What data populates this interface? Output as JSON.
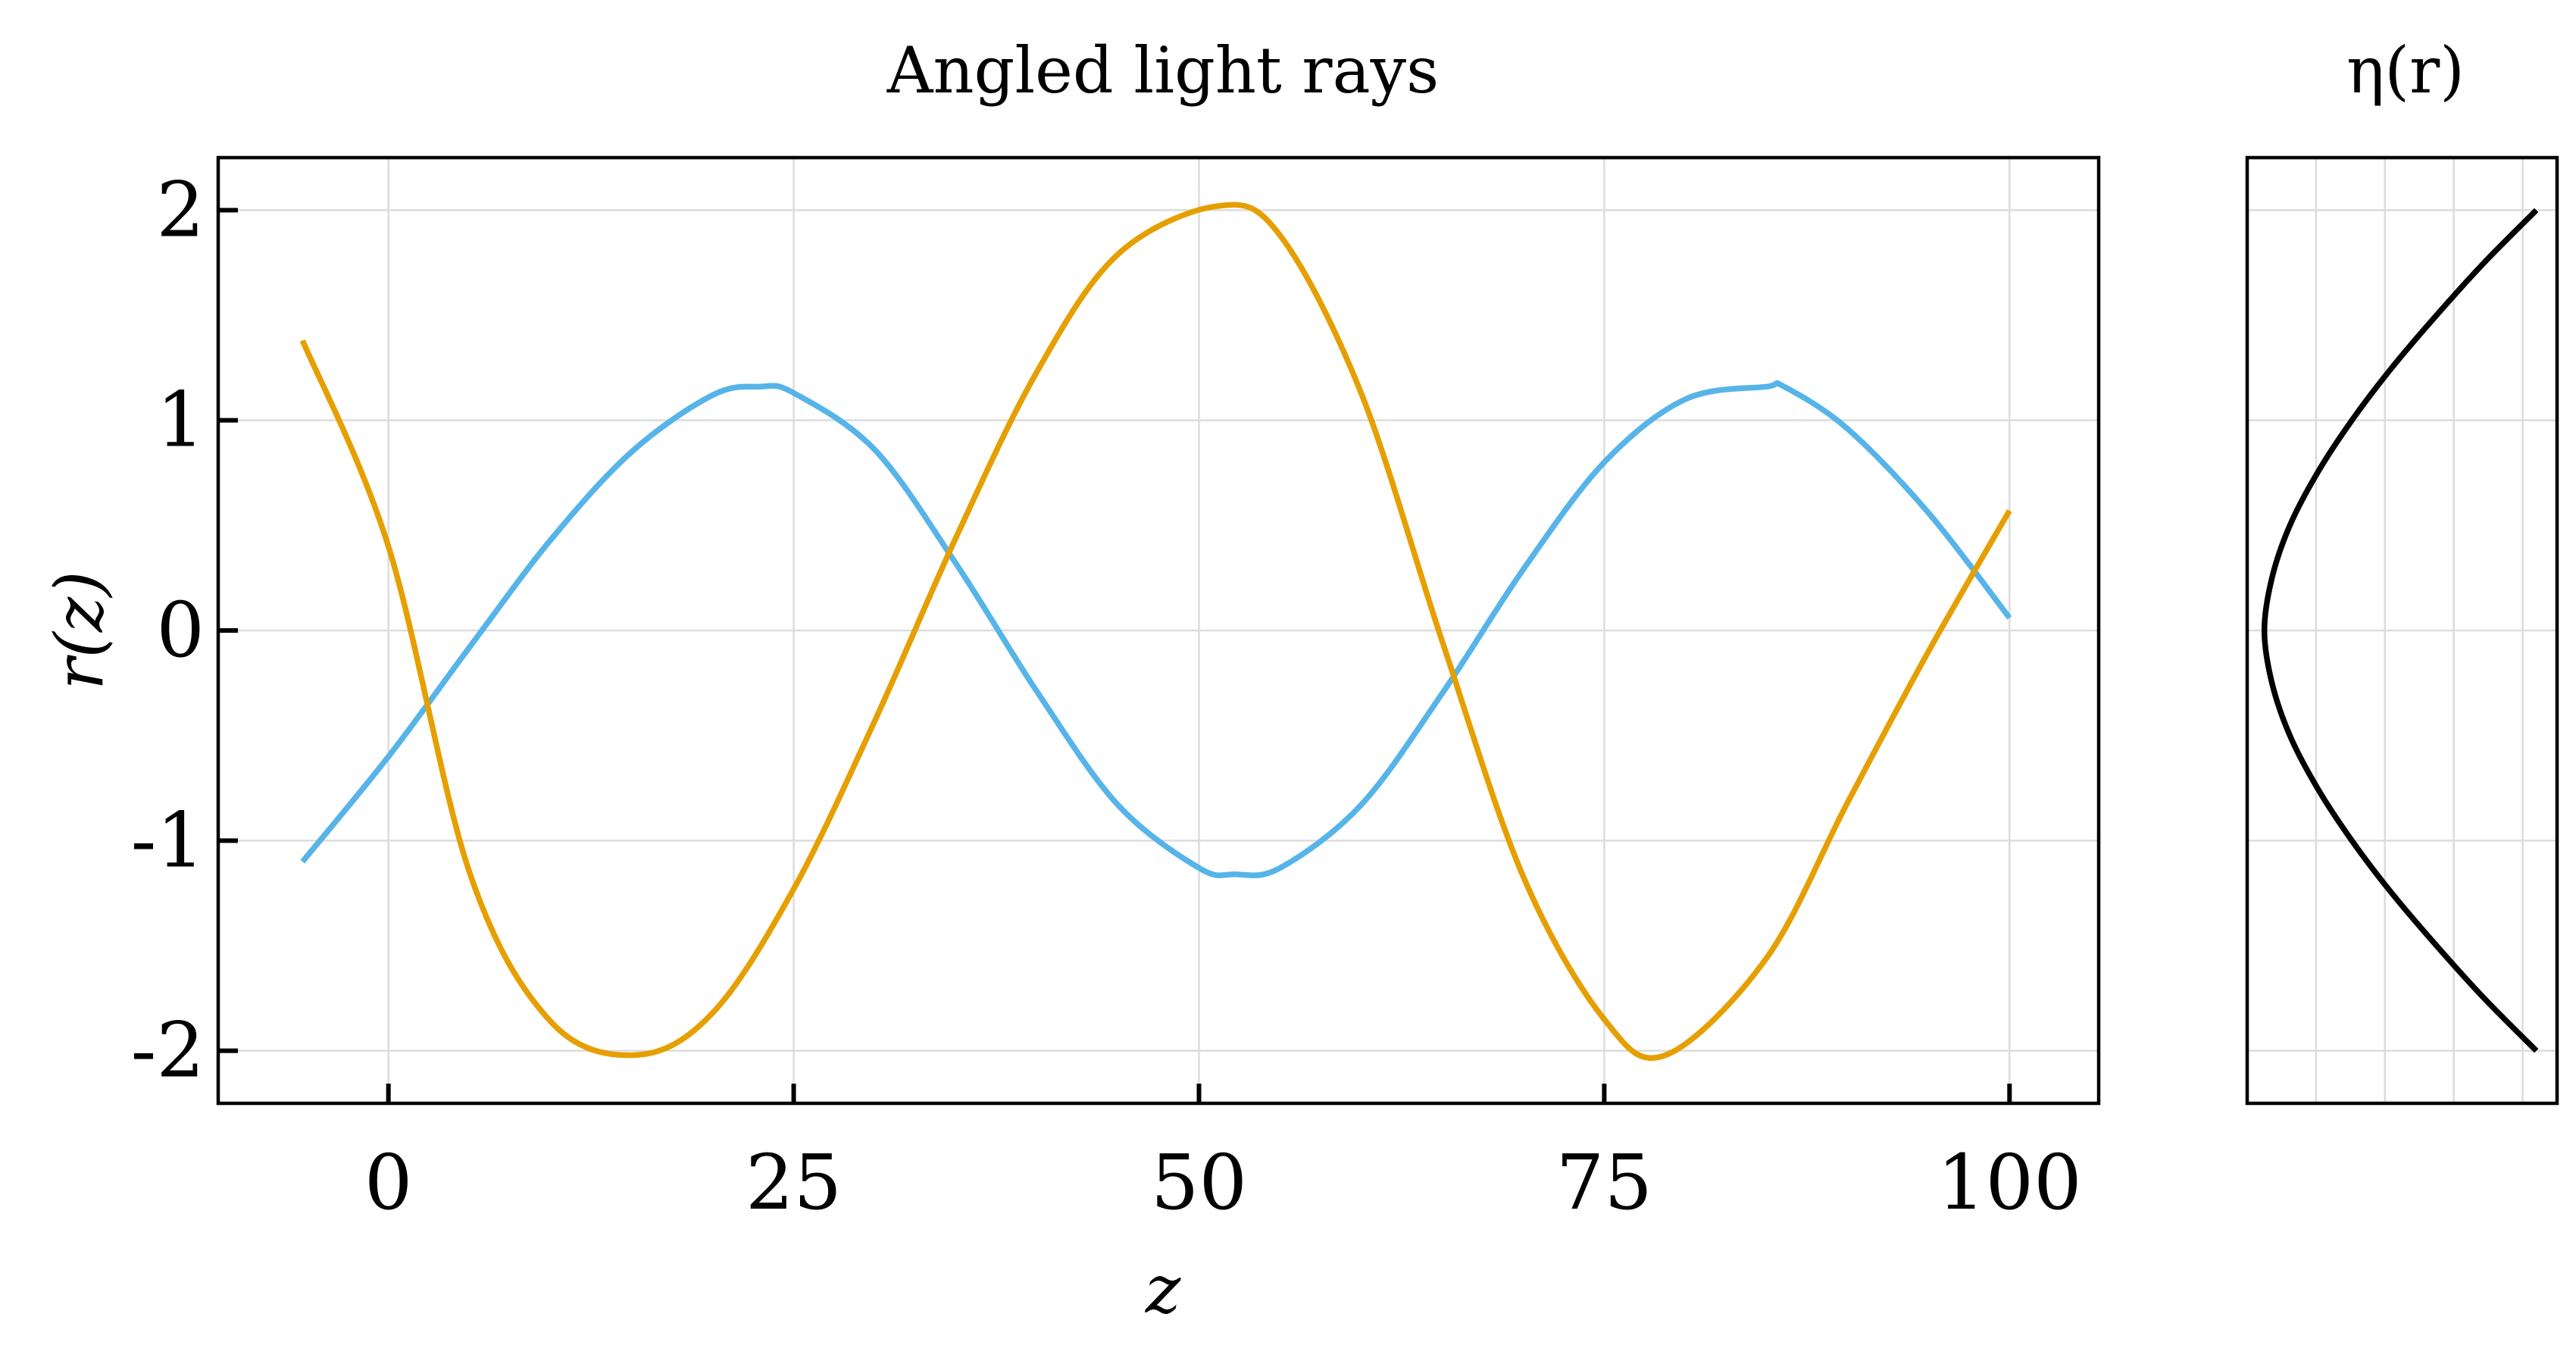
{
  "chart_data": [
    {
      "type": "line",
      "title": "Angled light rays",
      "xlabel": "z",
      "ylabel": "r(z)",
      "xlim": [
        -10.5,
        105.5
      ],
      "ylim": [
        -2.25,
        2.25
      ],
      "x_ticks": [
        {
          "value": 0,
          "label": "0"
        },
        {
          "value": 25,
          "label": "25"
        },
        {
          "value": 50,
          "label": "50"
        },
        {
          "value": 75,
          "label": "75"
        },
        {
          "value": 100,
          "label": "100"
        }
      ],
      "y_ticks": [
        {
          "value": 2,
          "label": "2"
        },
        {
          "value": 1,
          "label": "1"
        },
        {
          "value": 0,
          "label": "0"
        },
        {
          "value": -1,
          "label": "-1"
        },
        {
          "value": -2,
          "label": "-2"
        }
      ],
      "grid": true,
      "series": [
        {
          "color": "#56B4E9",
          "x": [
            -5.3,
            0,
            5,
            10,
            15,
            20,
            22.9,
            25,
            30,
            35,
            40,
            45,
            50,
            52.2,
            55,
            60,
            65,
            70,
            75,
            80,
            85,
            86.1,
            90,
            95,
            100
          ],
          "y": [
            -1.1,
            -0.6,
            -0.08,
            0.43,
            0.85,
            1.12,
            1.16,
            1.13,
            0.86,
            0.32,
            -0.29,
            -0.83,
            -1.13,
            -1.16,
            -1.13,
            -0.83,
            -0.3,
            0.29,
            0.8,
            1.1,
            1.16,
            1.16,
            0.96,
            0.56,
            0.06
          ]
        },
        {
          "color": "#E69F00",
          "x": [
            -5.3,
            0,
            5,
            10,
            15.3,
            20,
            25,
            30,
            35,
            40,
            45,
            51.2,
            55,
            60,
            65,
            70,
            75,
            78.8,
            85,
            90,
            95,
            100
          ],
          "y": [
            1.38,
            0.4,
            -1.15,
            -1.86,
            -2.02,
            -1.82,
            -1.23,
            -0.43,
            0.44,
            1.23,
            1.79,
            2.02,
            1.88,
            1.13,
            -0.05,
            -1.17,
            -1.85,
            -2.02,
            -1.56,
            -0.82,
            -0.1,
            0.57
          ]
        }
      ]
    },
    {
      "type": "line",
      "title": "η(r)",
      "xlabel": "",
      "ylabel": "",
      "xlim": [
        0.0,
        4.5
      ],
      "ylim": [
        -2.25,
        2.25
      ],
      "x_ticks": [
        {
          "value": 1,
          "label": ""
        },
        {
          "value": 2,
          "label": ""
        },
        {
          "value": 3,
          "label": ""
        },
        {
          "value": 4,
          "label": ""
        }
      ],
      "y_ticks": [
        {
          "value": 2,
          "label": ""
        },
        {
          "value": 1,
          "label": ""
        },
        {
          "value": 0,
          "label": ""
        },
        {
          "value": -1,
          "label": ""
        },
        {
          "value": -2,
          "label": ""
        }
      ],
      "grid": true,
      "series": [
        {
          "color": "#000000",
          "x": [
            4.2,
            3.44,
            2.75,
            2.1,
            1.52,
            1.02,
            0.62,
            0.36,
            0.25,
            0.36,
            0.62,
            1.02,
            1.52,
            2.1,
            2.75,
            3.44,
            4.2
          ],
          "y": [
            -2.0,
            -1.75,
            -1.5,
            -1.25,
            -1.0,
            -0.75,
            -0.5,
            -0.25,
            0.0,
            0.25,
            0.5,
            0.75,
            1.0,
            1.25,
            1.5,
            1.75,
            2.0
          ]
        }
      ]
    }
  ]
}
